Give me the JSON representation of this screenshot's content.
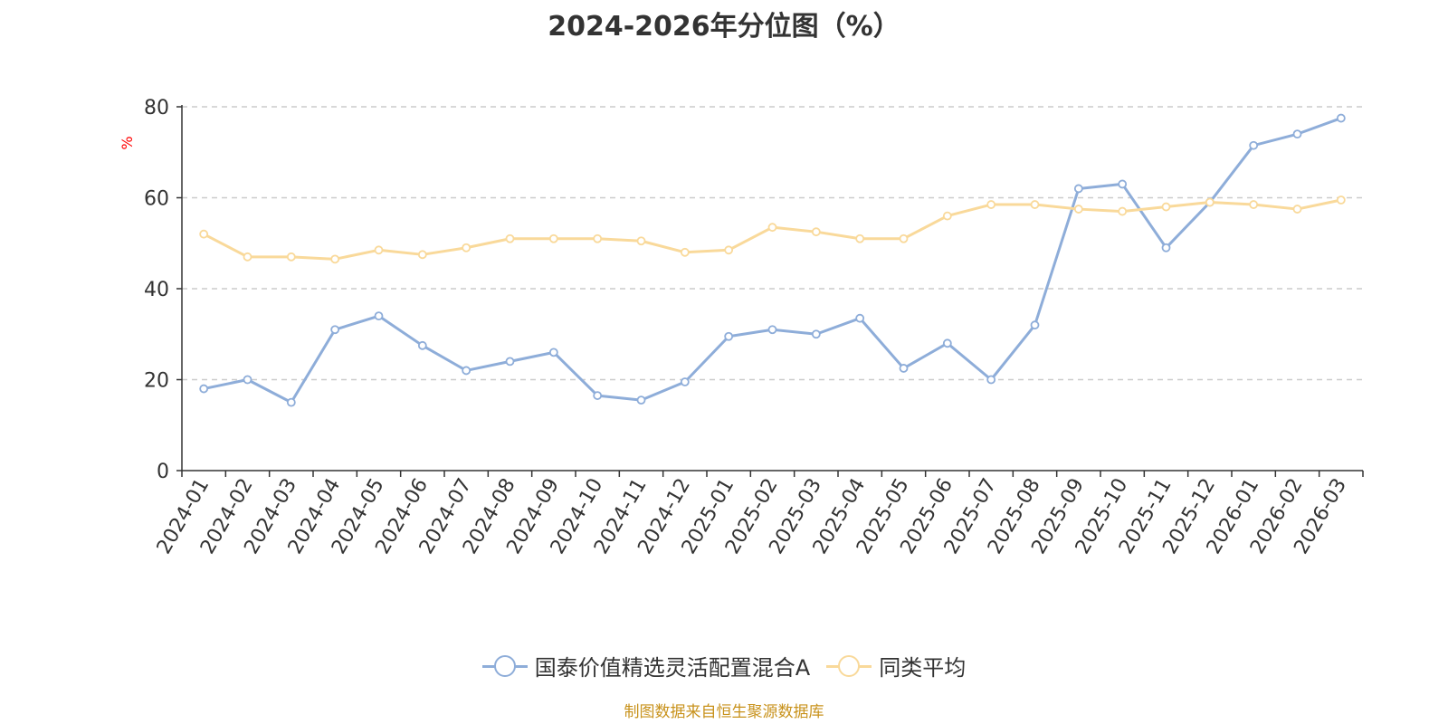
{
  "chart_data": {
    "type": "line",
    "title": "2024-2026年分位图（%）",
    "ylabel": "%",
    "xlabel": "",
    "ylim": [
      0,
      80
    ],
    "yticks": [
      0,
      20,
      40,
      60,
      80
    ],
    "grid": true,
    "legend_position": "bottom",
    "categories": [
      "2024-01",
      "2024-02",
      "2024-03",
      "2024-04",
      "2024-05",
      "2024-06",
      "2024-07",
      "2024-08",
      "2024-09",
      "2024-10",
      "2024-11",
      "2024-12",
      "2025-01",
      "2025-02",
      "2025-03",
      "2025-04",
      "2025-05",
      "2025-06",
      "2025-07",
      "2025-08",
      "2025-09",
      "2025-10",
      "2025-11",
      "2025-12",
      "2026-01",
      "2026-02",
      "2026-03"
    ],
    "series": [
      {
        "name": "国泰价值精选灵活配置混合A",
        "color": "#8eadd9",
        "values": [
          18.0,
          20.0,
          15.0,
          31.0,
          34.0,
          27.5,
          22.0,
          24.0,
          26.0,
          16.5,
          15.5,
          19.5,
          29.5,
          31.0,
          30.0,
          33.5,
          22.5,
          28.0,
          20.0,
          32.0,
          62.0,
          63.0,
          49.0,
          59.0,
          71.5,
          74.0,
          77.5
        ]
      },
      {
        "name": "同类平均",
        "color": "#f9d99a",
        "values": [
          52.0,
          47.0,
          47.0,
          46.5,
          48.5,
          47.5,
          49.0,
          51.0,
          51.0,
          51.0,
          50.5,
          48.0,
          48.5,
          53.5,
          52.5,
          51.0,
          51.0,
          56.0,
          58.5,
          58.5,
          57.5,
          57.0,
          58.0,
          59.0,
          58.5,
          57.5,
          59.5
        ]
      }
    ]
  },
  "source": {
    "text": "制图数据来自恒生聚源数据库",
    "color": "#c8921c"
  },
  "ylabel_color": "#ff0000"
}
